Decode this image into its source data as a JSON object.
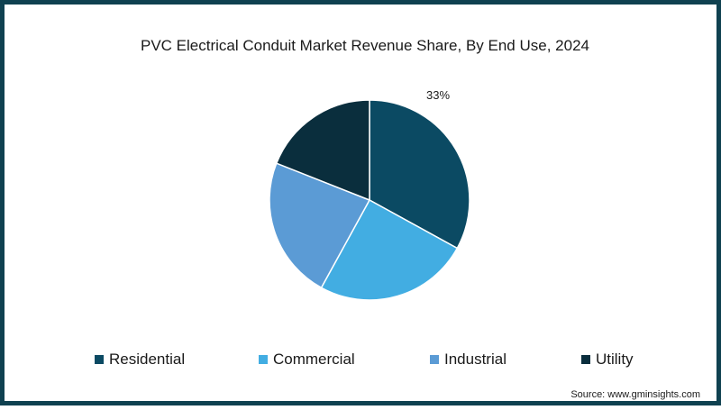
{
  "chart_data": {
    "type": "pie",
    "title": "PVC Electrical Conduit Market Revenue Share, By End Use, 2024",
    "categories": [
      "Residential",
      "Commercial",
      "Industrial",
      "Utility"
    ],
    "values": [
      33,
      25,
      23,
      19
    ],
    "data_labels": [
      "33%",
      "",
      "",
      ""
    ],
    "colors": [
      "#0b4a63",
      "#42ade2",
      "#5b9bd5",
      "#0a2e3d"
    ],
    "legend_position": "bottom"
  },
  "source": "Source: www.gminsights.com"
}
